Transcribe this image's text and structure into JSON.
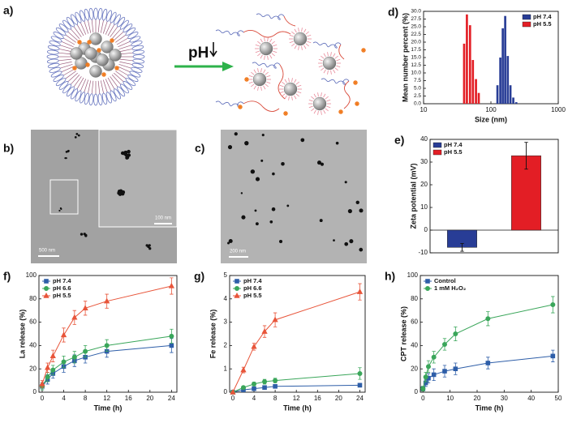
{
  "panels": {
    "a": {
      "label": "a)",
      "trigger": "pH"
    },
    "b": {
      "label": "b)",
      "scale_bars": [
        "500 nm",
        "100 nm"
      ]
    },
    "c": {
      "label": "c)",
      "scale_bar": "200 nm"
    }
  },
  "chart_data": [
    {
      "type": "bar",
      "panel": "d)",
      "xlabel": "Size (nm)",
      "ylabel": "Mean number percent (%)",
      "xscale": "log",
      "xlim": [
        10,
        1000
      ],
      "xticks": [
        10,
        100,
        1000
      ],
      "ylim": [
        0,
        30
      ],
      "yticks": [
        {
          "value": 0,
          "label": "0.0"
        },
        {
          "value": 2.5,
          "label": "2.5"
        },
        {
          "value": 5,
          "label": "5.0"
        },
        {
          "value": 7.5,
          "label": "7.5"
        },
        {
          "value": 10,
          "label": "10.0"
        },
        {
          "value": 12.5,
          "label": "12.5"
        },
        {
          "value": 15,
          "label": "15.0"
        },
        {
          "value": 17.5,
          "label": "17.5"
        },
        {
          "value": 20,
          "label": "20.0"
        },
        {
          "value": 22.5,
          "label": "22.5"
        },
        {
          "value": 25,
          "label": "25.0"
        },
        {
          "value": 27.5,
          "label": "27.5"
        },
        {
          "value": 30,
          "label": "30.0"
        }
      ],
      "legend": "upper right",
      "series": [
        {
          "name": "pH 7.4",
          "color": "#283d96",
          "x": [
            125,
            138,
            150,
            163,
            178,
            195,
            215,
            238
          ],
          "values": [
            6,
            15,
            24.5,
            28.5,
            15.5,
            6,
            2,
            0.5
          ]
        },
        {
          "name": "pH 5.5",
          "color": "#e31e25",
          "x": [
            40,
            44,
            49,
            54,
            60,
            66
          ],
          "values": [
            19.5,
            29,
            25.5,
            14.2,
            8,
            3.5
          ]
        }
      ]
    },
    {
      "type": "bar",
      "panel": "e)",
      "ylabel": "Zeta potential (mV)",
      "ylim": [
        -10,
        40
      ],
      "yticks": [
        -10,
        0,
        10,
        20,
        30,
        40
      ],
      "legend": "upper left",
      "series": [
        {
          "name": "pH 7.4",
          "color": "#283d96",
          "values": [
            -7.6
          ],
          "errors": [
            1.7
          ]
        },
        {
          "name": "pH 5.5",
          "color": "#e31e25",
          "values": [
            32.8
          ],
          "errors": [
            5.9
          ]
        }
      ]
    },
    {
      "type": "line",
      "panel": "f)",
      "xlabel": "Time (h)",
      "ylabel": "La release (%)",
      "x": [
        0,
        1,
        2,
        4,
        6,
        8,
        12,
        24
      ],
      "xlim": [
        -0.6,
        25
      ],
      "xticks": [
        0,
        4,
        8,
        12,
        16,
        20,
        24
      ],
      "ylim": [
        0,
        100
      ],
      "yticks": [
        0,
        20,
        40,
        60,
        80,
        100
      ],
      "legend": "upper left",
      "series": [
        {
          "name": "pH 7.4",
          "color": "#2e5ea8",
          "marker": "square",
          "values": [
            5,
            11,
            16,
            22,
            27,
            30,
            35,
            40
          ],
          "errors": [
            3,
            4,
            4,
            5,
            5,
            5,
            5,
            6
          ]
        },
        {
          "name": "pH 6.6",
          "color": "#3aa65a",
          "marker": "circle",
          "values": [
            5,
            13,
            19,
            26,
            30,
            35,
            40,
            48
          ],
          "errors": [
            3,
            4,
            4,
            5,
            5,
            5,
            5,
            6
          ]
        },
        {
          "name": "pH 5.5",
          "color": "#e8553a",
          "marker": "triangle",
          "values": [
            7,
            21,
            31,
            49,
            64,
            72,
            78,
            91
          ],
          "errors": [
            3,
            4,
            5,
            6,
            6,
            6,
            6,
            7
          ]
        }
      ]
    },
    {
      "type": "line",
      "panel": "g)",
      "xlabel": "Time (h)",
      "ylabel": "Fe release (%)",
      "x": [
        0,
        2,
        4,
        6,
        8,
        24
      ],
      "xlim": [
        -0.6,
        25
      ],
      "xticks": [
        0,
        4,
        8,
        12,
        16,
        20,
        24
      ],
      "ylim": [
        0,
        5
      ],
      "yticks": [
        0,
        1,
        2,
        3,
        4,
        5
      ],
      "legend": "upper left",
      "series": [
        {
          "name": "pH 7.4",
          "color": "#2e5ea8",
          "marker": "square",
          "values": [
            0,
            0.1,
            0.15,
            0.2,
            0.25,
            0.3
          ],
          "errors": [
            0.02,
            0.05,
            0.05,
            0.06,
            0.06,
            0.08
          ]
        },
        {
          "name": "pH 6.6",
          "color": "#3aa65a",
          "marker": "circle",
          "values": [
            0,
            0.2,
            0.35,
            0.45,
            0.5,
            0.8
          ],
          "errors": [
            0.02,
            0.06,
            0.08,
            0.1,
            0.1,
            0.25
          ]
        },
        {
          "name": "pH 5.5",
          "color": "#e8553a",
          "marker": "triangle",
          "values": [
            0,
            0.95,
            1.95,
            2.6,
            3.1,
            4.3
          ],
          "errors": [
            0.02,
            0.12,
            0.15,
            0.25,
            0.3,
            0.35
          ]
        }
      ]
    },
    {
      "type": "line",
      "panel": "h)",
      "xlabel": "Time (h)",
      "ylabel": "CPT release (%)",
      "x": [
        0,
        1,
        2,
        4,
        8,
        12,
        24,
        48
      ],
      "xlim": [
        -1,
        50
      ],
      "xticks": [
        0,
        10,
        20,
        30,
        40,
        50
      ],
      "ylim": [
        0,
        100
      ],
      "yticks": [
        0,
        20,
        40,
        60,
        80,
        100
      ],
      "legend": "upper left",
      "series": [
        {
          "name": "Control",
          "color": "#2e5ea8",
          "marker": "square",
          "values": [
            3,
            8,
            12,
            15,
            18,
            20,
            25,
            31
          ],
          "errors": [
            2,
            3,
            4,
            5,
            5,
            5,
            5,
            5
          ]
        },
        {
          "name": "1 mM H₂O₂",
          "color": "#3aa65a",
          "marker": "circle",
          "values": [
            3,
            13,
            22,
            30,
            41,
            50,
            63,
            75
          ],
          "errors": [
            2,
            4,
            5,
            5,
            5,
            6,
            6,
            7
          ]
        }
      ]
    }
  ]
}
